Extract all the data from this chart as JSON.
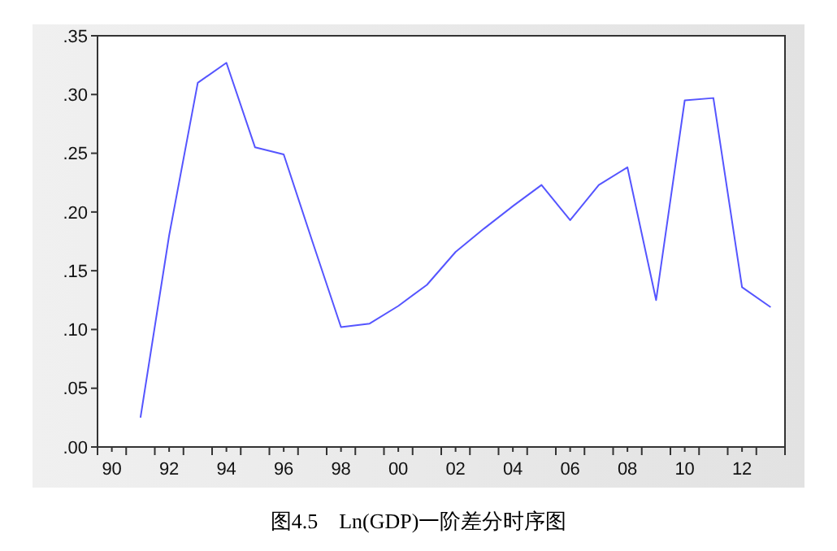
{
  "chart_data": {
    "type": "line",
    "title": "图4.5　Ln(GDP)一阶差分时序图",
    "x": [
      1991,
      1992,
      1993,
      1994,
      1995,
      1996,
      1997,
      1998,
      1999,
      2000,
      2001,
      2002,
      2003,
      2004,
      2005,
      2006,
      2007,
      2008,
      2009,
      2010,
      2011,
      2012,
      2013
    ],
    "series": [
      {
        "color": "#5555ff",
        "values": [
          0.025,
          0.18,
          0.31,
          0.327,
          0.255,
          0.249,
          0.175,
          0.102,
          0.105,
          0.12,
          0.138,
          0.166,
          0.186,
          0.205,
          0.223,
          0.193,
          0.223,
          0.238,
          0.125,
          0.295,
          0.297,
          0.136,
          0.119
        ]
      }
    ],
    "xlim": [
      1989.5,
      2013.5
    ],
    "xticks": [
      {
        "value": 1990,
        "label": "90"
      },
      {
        "value": 1992,
        "label": "92"
      },
      {
        "value": 1994,
        "label": "94"
      },
      {
        "value": 1996,
        "label": "96"
      },
      {
        "value": 1998,
        "label": "98"
      },
      {
        "value": 2000,
        "label": "00"
      },
      {
        "value": 2002,
        "label": "02"
      },
      {
        "value": 2004,
        "label": "04"
      },
      {
        "value": 2006,
        "label": "06"
      },
      {
        "value": 2008,
        "label": "08"
      },
      {
        "value": 2010,
        "label": "10"
      },
      {
        "value": 2012,
        "label": "12"
      }
    ],
    "ylim": [
      0,
      0.35
    ],
    "yticks": [
      {
        "value": 0,
        "label": ".00"
      },
      {
        "value": 0.05,
        "label": ".05"
      },
      {
        "value": 0.1,
        "label": ".10"
      },
      {
        "value": 0.15,
        "label": ".15"
      },
      {
        "value": 0.2,
        "label": ".20"
      },
      {
        "value": 0.25,
        "label": ".25"
      },
      {
        "value": 0.3,
        "label": ".30"
      },
      {
        "value": 0.35,
        "label": ".35"
      }
    ],
    "grid": false,
    "marker": "none",
    "line_style": "solid"
  }
}
